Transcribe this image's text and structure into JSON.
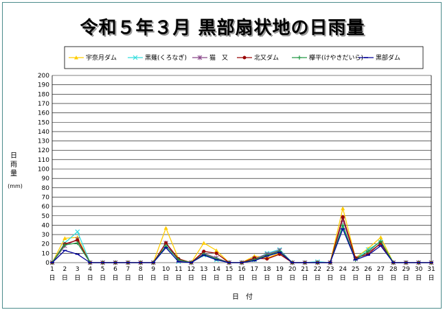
{
  "chart_data": {
    "type": "line",
    "title": "令和５年３月 黒部扇状地の日雨量",
    "ylabel_chars": [
      "日",
      "雨",
      "量"
    ],
    "yunit": "(mm)",
    "xlabel": "日　付",
    "ylim": [
      0,
      200
    ],
    "ytick_step": 10,
    "x": [
      1,
      2,
      3,
      4,
      5,
      6,
      7,
      8,
      9,
      10,
      11,
      12,
      13,
      14,
      15,
      16,
      17,
      18,
      19,
      20,
      21,
      22,
      23,
      24,
      25,
      26,
      27,
      28,
      29,
      30,
      31
    ],
    "xtick_suffix": "日",
    "grid": true,
    "legend_placement": "top",
    "series": [
      {
        "name": "宇奈月ダム",
        "color": "#ffcc00",
        "marker": "triangle",
        "values": [
          0,
          26,
          27,
          0,
          0,
          0,
          0,
          0,
          0,
          37,
          4,
          0,
          21,
          13,
          0,
          0,
          7,
          5,
          10,
          0,
          0,
          0,
          0,
          58,
          5,
          15,
          27,
          0,
          0,
          0,
          0
        ]
      },
      {
        "name": "黒薙(くろなぎ)",
        "color": "#33dddd",
        "marker": "x",
        "values": [
          0,
          21,
          33,
          0,
          0,
          0,
          0,
          0,
          0,
          16,
          1,
          0,
          8,
          3,
          0,
          0,
          3,
          10,
          14,
          0,
          0,
          1,
          0,
          38,
          4,
          14,
          22,
          0,
          0,
          0,
          0
        ]
      },
      {
        "name": "猫　又",
        "color": "#884488",
        "marker": "star",
        "values": [
          0,
          18,
          25,
          0,
          0,
          0,
          0,
          0,
          0,
          21,
          2,
          0,
          10,
          5,
          0,
          0,
          4,
          9,
          13,
          0,
          0,
          0,
          0,
          46,
          4,
          11,
          20,
          0,
          0,
          0,
          0
        ]
      },
      {
        "name": "北又ダム",
        "color": "#990000",
        "marker": "circle",
        "values": [
          0,
          20,
          24,
          0,
          0,
          0,
          0,
          0,
          0,
          21,
          4,
          0,
          12,
          10,
          0,
          0,
          5,
          4,
          9,
          0,
          0,
          0,
          0,
          49,
          5,
          9,
          21,
          0,
          0,
          0,
          0
        ]
      },
      {
        "name": "欅平(けやきだいら)",
        "color": "#229944",
        "marker": "plus",
        "values": [
          0,
          19,
          21,
          0,
          0,
          0,
          0,
          0,
          0,
          18,
          3,
          0,
          9,
          4,
          0,
          0,
          3,
          8,
          12,
          0,
          0,
          0,
          0,
          40,
          3,
          12,
          23,
          0,
          0,
          0,
          0
        ]
      },
      {
        "name": "黒部ダム",
        "color": "#000099",
        "marker": "dash",
        "values": [
          0,
          13,
          9,
          0,
          0,
          0,
          0,
          0,
          0,
          16,
          1,
          0,
          8,
          3,
          0,
          0,
          2,
          7,
          11,
          0,
          0,
          0,
          0,
          36,
          3,
          8,
          18,
          0,
          0,
          0,
          0
        ]
      }
    ]
  }
}
